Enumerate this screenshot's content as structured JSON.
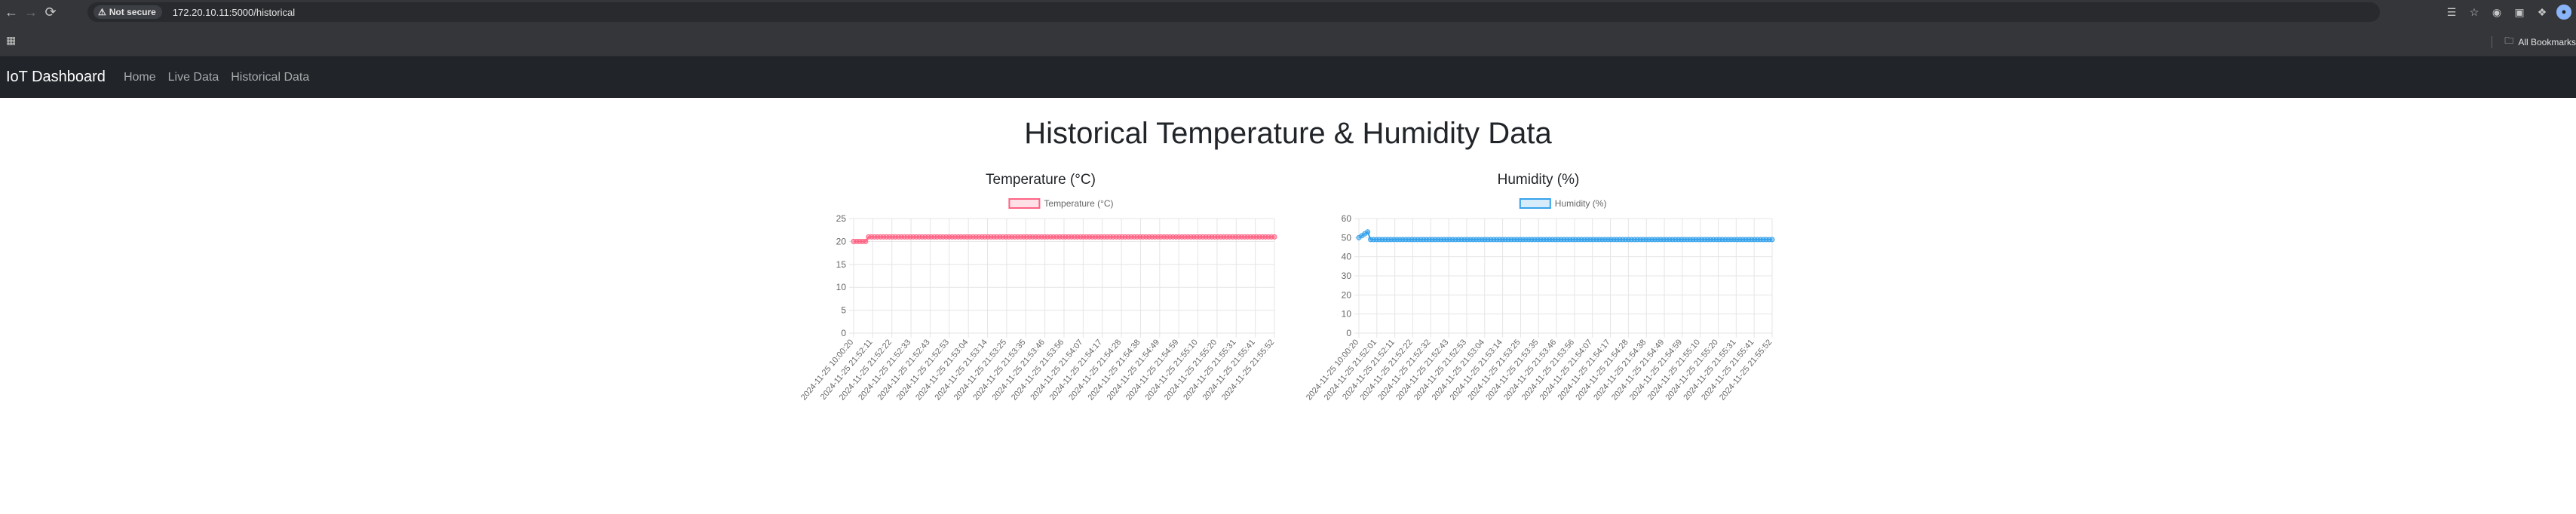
{
  "browser": {
    "security_label": "Not secure",
    "url": "172.20.10.11:5000/historical",
    "bookmarks_label": "All Bookmarks"
  },
  "navbar": {
    "brand": "IoT Dashboard",
    "links": [
      "Home",
      "Live Data",
      "Historical Data"
    ]
  },
  "page": {
    "title": "Historical Temperature & Humidity Data"
  },
  "chart_data": [
    {
      "type": "line",
      "title": "Temperature (°C)",
      "color": "#ff6384",
      "series": [
        {
          "name": "Temperature (°C)"
        }
      ],
      "ylim": [
        0,
        25
      ],
      "yticks": [
        0,
        5,
        10,
        15,
        20,
        25
      ],
      "tick_labels": [
        "2024-11-25 10:00:20",
        "2024-11-25 21:52:11",
        "2024-11-25 21:52:22",
        "2024-11-25 21:52:33",
        "2024-11-25 21:52:43",
        "2024-11-25 21:52:53",
        "2024-11-25 21:53:04",
        "2024-11-25 21:53:14",
        "2024-11-25 21:53:25",
        "2024-11-25 21:53:35",
        "2024-11-25 21:53:46",
        "2024-11-25 21:53:56",
        "2024-11-25 21:54:07",
        "2024-11-25 21:54:17",
        "2024-11-25 21:54:28",
        "2024-11-25 21:54:38",
        "2024-11-25 21:54:49",
        "2024-11-25 21:54:59",
        "2024-11-25 21:55:10",
        "2024-11-25 21:55:20",
        "2024-11-25 21:55:31",
        "2024-11-25 21:55:41",
        "2024-11-25 21:55:52"
      ],
      "values": [
        20,
        20,
        20,
        20,
        20,
        21,
        21,
        21,
        21,
        21,
        21,
        21,
        21,
        21,
        21,
        21,
        21,
        21,
        21,
        21,
        21,
        21,
        21,
        21,
        21,
        21,
        21,
        21,
        21,
        21,
        21,
        21,
        21,
        21,
        21,
        21,
        21,
        21,
        21,
        21,
        21,
        21,
        21,
        21,
        21,
        21,
        21,
        21,
        21,
        21,
        21,
        21,
        21,
        21,
        21,
        21,
        21,
        21,
        21,
        21,
        21,
        21,
        21,
        21,
        21,
        21,
        21,
        21,
        21,
        21,
        21,
        21,
        21,
        21,
        21,
        21,
        21,
        21,
        21,
        21,
        21,
        21,
        21,
        21,
        21,
        21,
        21,
        21,
        21,
        21,
        21,
        21,
        21,
        21,
        21,
        21,
        21,
        21,
        21,
        21,
        21,
        21,
        21,
        21,
        21,
        21,
        21,
        21,
        21,
        21,
        21,
        21,
        21,
        21,
        21,
        21,
        21,
        21,
        21,
        21,
        21,
        21,
        21,
        21,
        21,
        21,
        21,
        21,
        21,
        21,
        21,
        21,
        21,
        21,
        21,
        21,
        21,
        21,
        21,
        21,
        21,
        21
      ]
    },
    {
      "type": "line",
      "title": "Humidity (%)",
      "color": "#36a2eb",
      "series": [
        {
          "name": "Humidity (%)"
        }
      ],
      "ylim": [
        0,
        60
      ],
      "yticks": [
        0,
        10,
        20,
        30,
        40,
        50,
        60
      ],
      "tick_labels": [
        "2024-11-25 10:00:20",
        "2024-11-25 21:52:01",
        "2024-11-25 21:52:11",
        "2024-11-25 21:52:22",
        "2024-11-25 21:52:32",
        "2024-11-25 21:52:43",
        "2024-11-25 21:52:53",
        "2024-11-25 21:53:04",
        "2024-11-25 21:53:14",
        "2024-11-25 21:53:25",
        "2024-11-25 21:53:35",
        "2024-11-25 21:53:46",
        "2024-11-25 21:53:56",
        "2024-11-25 21:54:07",
        "2024-11-25 21:54:17",
        "2024-11-25 21:54:28",
        "2024-11-25 21:54:38",
        "2024-11-25 21:54:49",
        "2024-11-25 21:54:59",
        "2024-11-25 21:55:10",
        "2024-11-25 21:55:20",
        "2024-11-25 21:55:31",
        "2024-11-25 21:55:41",
        "2024-11-25 21:55:52"
      ],
      "values": [
        50,
        51,
        52,
        53,
        49,
        49,
        49,
        49,
        49,
        49,
        49,
        49,
        49,
        49,
        49,
        49,
        49,
        49,
        49,
        49,
        49,
        49,
        49,
        49,
        49,
        49,
        49,
        49,
        49,
        49,
        49,
        49,
        49,
        49,
        49,
        49,
        49,
        49,
        49,
        49,
        49,
        49,
        49,
        49,
        49,
        49,
        49,
        49,
        49,
        49,
        49,
        49,
        49,
        49,
        49,
        49,
        49,
        49,
        49,
        49,
        49,
        49,
        49,
        49,
        49,
        49,
        49,
        49,
        49,
        49,
        49,
        49,
        49,
        49,
        49,
        49,
        49,
        49,
        49,
        49,
        49,
        49,
        49,
        49,
        49,
        49,
        49,
        49,
        49,
        49,
        49,
        49,
        49,
        49,
        49,
        49,
        49,
        49,
        49,
        49,
        49,
        49,
        49,
        49,
        49,
        49,
        49,
        49,
        49,
        49,
        49,
        49,
        49,
        49,
        49,
        49,
        49,
        49,
        49,
        49,
        49,
        49,
        49,
        49,
        49,
        49,
        49,
        49,
        49,
        49,
        49,
        49,
        49,
        49,
        49,
        49,
        49,
        49,
        49,
        49,
        49,
        49
      ]
    }
  ]
}
